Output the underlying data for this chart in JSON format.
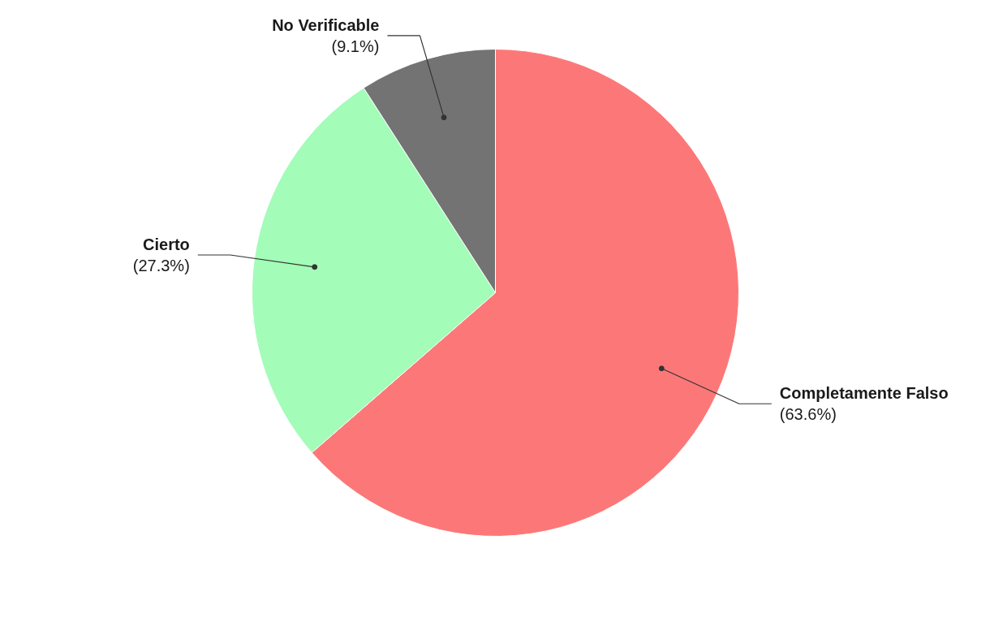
{
  "chart_data": {
    "type": "pie",
    "categories": [
      "Completamente Falso",
      "Cierto",
      "No Verificable"
    ],
    "values": [
      63.6,
      27.3,
      9.1
    ],
    "colors": [
      "#fc7878",
      "#a3fcb8",
      "#737373"
    ],
    "value_labels": [
      "(63.6%)",
      "(27.3%)",
      "(9.1%)"
    ]
  }
}
